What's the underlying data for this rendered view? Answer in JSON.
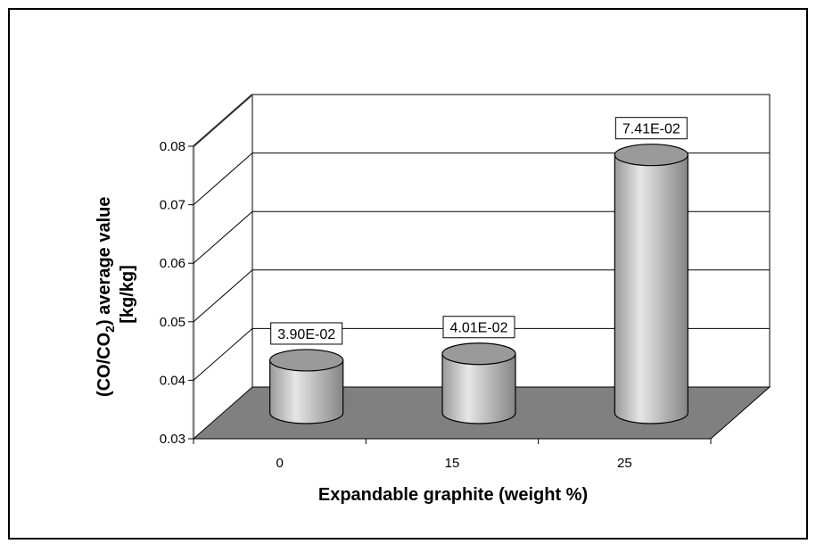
{
  "chart_data": {
    "type": "bar",
    "style": "3d-cylinder",
    "categories": [
      "0",
      "15",
      "25"
    ],
    "values": [
      0.039,
      0.0401,
      0.0741
    ],
    "data_labels": [
      "3.90E-02",
      "4.01E-02",
      "7.41E-02"
    ],
    "xlabel": "Expandable graphite (weight %)",
    "ylabel": {
      "line1_pre": "(CO/CO",
      "line1_sub": "2",
      "line1_post": ") average value",
      "line2": "[kg/kg]"
    },
    "yticks": [
      "0.03",
      "0.04",
      "0.05",
      "0.06",
      "0.07",
      "0.08"
    ],
    "ylim": [
      0.03,
      0.08
    ],
    "grid": true,
    "legend": "none",
    "colors": {
      "floor": "#808080",
      "bar_light": "#e4e4e4",
      "bar_dark": "#8a8a8a",
      "bar_top": "#9a9a9a",
      "frame": "#000000"
    }
  }
}
